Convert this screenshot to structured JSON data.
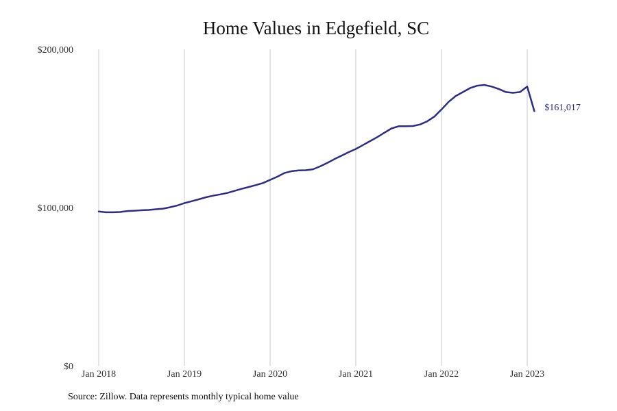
{
  "chart_data": {
    "type": "line",
    "title": "Home Values in Edgefield, SC",
    "xlabel": "",
    "ylabel": "",
    "ylim": [
      0,
      200000
    ],
    "y_ticks": [
      {
        "value": 0,
        "label": "$0"
      },
      {
        "value": 100000,
        "label": "$100,000"
      },
      {
        "value": 200000,
        "label": "$200,000"
      }
    ],
    "x_ticks": [
      {
        "value": "2018-01",
        "label": "Jan 2018"
      },
      {
        "value": "2019-01",
        "label": "Jan 2019"
      },
      {
        "value": "2020-01",
        "label": "Jan 2020"
      },
      {
        "value": "2021-01",
        "label": "Jan 2021"
      },
      {
        "value": "2022-01",
        "label": "Jan 2022"
      },
      {
        "value": "2023-01",
        "label": "Jan 2023"
      }
    ],
    "x_range": [
      "2017-11",
      "2023-11"
    ],
    "grid": "vertical",
    "end_label": "$161,017",
    "colors": {
      "line": "#2e2c86",
      "grid": "#c8c8c8"
    },
    "series": [
      {
        "x": [
          "2018-01",
          "2018-02",
          "2018-03",
          "2018-04",
          "2018-05",
          "2018-06",
          "2018-07",
          "2018-08",
          "2018-09",
          "2018-10",
          "2018-11",
          "2018-12",
          "2019-01",
          "2019-02",
          "2019-03",
          "2019-04",
          "2019-05",
          "2019-06",
          "2019-07",
          "2019-08",
          "2019-09",
          "2019-10",
          "2019-11",
          "2019-12",
          "2020-01",
          "2020-02",
          "2020-03",
          "2020-04",
          "2020-05",
          "2020-06",
          "2020-07",
          "2020-08",
          "2020-09",
          "2020-10",
          "2020-11",
          "2020-12",
          "2021-01",
          "2021-02",
          "2021-03",
          "2021-04",
          "2021-05",
          "2021-06",
          "2021-07",
          "2021-08",
          "2021-09",
          "2021-10",
          "2021-11",
          "2021-12",
          "2022-01",
          "2022-02",
          "2022-03",
          "2022-04",
          "2022-05",
          "2022-06",
          "2022-07",
          "2022-08",
          "2022-09",
          "2022-10",
          "2022-11",
          "2022-12",
          "2023-01",
          "2023-02"
        ],
        "values": [
          97500,
          97000,
          97000,
          97200,
          97800,
          98000,
          98300,
          98500,
          98900,
          99300,
          100200,
          101300,
          102800,
          104000,
          105200,
          106500,
          107500,
          108300,
          109200,
          110500,
          111800,
          113000,
          114200,
          115500,
          117500,
          119500,
          121800,
          123000,
          123500,
          123600,
          124200,
          126000,
          128200,
          130600,
          132800,
          135000,
          137000,
          139500,
          142000,
          144500,
          147300,
          150000,
          151400,
          151400,
          151500,
          152500,
          154500,
          157500,
          162000,
          166800,
          170500,
          173000,
          175500,
          177000,
          177500,
          176500,
          175000,
          173000,
          172500,
          173000,
          176500,
          161017
        ]
      }
    ]
  },
  "source": "Source: Zillow. Data represents monthly typical home value"
}
